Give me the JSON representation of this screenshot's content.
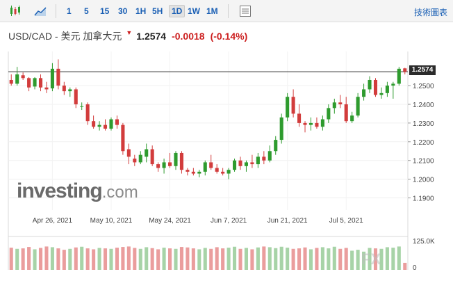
{
  "toolbar": {
    "timeframes": [
      "1",
      "5",
      "15",
      "30",
      "1H",
      "5H",
      "1D",
      "1W",
      "1M"
    ],
    "active_timeframe": "1D",
    "tech_chart_label": "技術圖表"
  },
  "header": {
    "symbol": "USD/CAD - 美元 加拿大元",
    "price": "1.2574",
    "change": "-0.0018",
    "change_pct": "(-0.14%)",
    "down_color": "#cc1f1f"
  },
  "logo": {
    "brand": "investing",
    "domain": ".com"
  },
  "watermark": "FX",
  "last_price_label": "1.2574",
  "chart_data": {
    "type": "candlestick",
    "up_color": "#2e9b2e",
    "down_color": "#d23c3c",
    "ylim": [
      1.185,
      1.266
    ],
    "y_ticks": [
      1.19,
      1.2,
      1.21,
      1.22,
      1.23,
      1.24,
      1.25
    ],
    "y_tick_labels": [
      "1.1900",
      "1.2000",
      "1.2100",
      "1.2200",
      "1.2300",
      "1.2400",
      "1.2500"
    ],
    "x_tick_labels": [
      "Apr 26, 2021",
      "May 10, 2021",
      "May 24, 2021",
      "Jun 7, 2021",
      "Jun 21, 2021",
      "Jul 5, 2021"
    ],
    "x_tick_index": [
      7,
      17,
      27,
      37,
      47,
      57
    ],
    "last_price": 1.2574,
    "volume_ticks": [
      "125.0K",
      "0"
    ],
    "volume_max": 125,
    "candles": [
      [
        1.253,
        1.256,
        1.25,
        1.251
      ],
      [
        1.251,
        1.26,
        1.25,
        1.256
      ],
      [
        1.2555,
        1.257,
        1.253,
        1.254
      ],
      [
        1.254,
        1.2545,
        1.247,
        1.249
      ],
      [
        1.2495,
        1.2545,
        1.248,
        1.254
      ],
      [
        1.254,
        1.256,
        1.247,
        1.249
      ],
      [
        1.249,
        1.252,
        1.246,
        1.248
      ],
      [
        1.2485,
        1.262,
        1.247,
        1.259
      ],
      [
        1.259,
        1.264,
        1.248,
        1.25
      ],
      [
        1.25,
        1.252,
        1.245,
        1.247
      ],
      [
        1.247,
        1.249,
        1.244,
        1.248
      ],
      [
        1.248,
        1.249,
        1.238,
        1.24
      ],
      [
        1.239,
        1.241,
        1.237,
        1.239
      ],
      [
        1.24,
        1.241,
        1.229,
        1.231
      ],
      [
        1.231,
        1.234,
        1.227,
        1.228
      ],
      [
        1.228,
        1.231,
        1.226,
        1.229
      ],
      [
        1.229,
        1.232,
        1.226,
        1.227
      ],
      [
        1.227,
        1.233,
        1.226,
        1.232
      ],
      [
        1.232,
        1.234,
        1.227,
        1.229
      ],
      [
        1.229,
        1.23,
        1.213,
        1.215
      ],
      [
        1.216,
        1.219,
        1.208,
        1.212
      ],
      [
        1.211,
        1.213,
        1.207,
        1.209
      ],
      [
        1.209,
        1.215,
        1.208,
        1.213
      ],
      [
        1.212,
        1.219,
        1.209,
        1.216
      ],
      [
        1.216,
        1.218,
        1.207,
        1.208
      ],
      [
        1.208,
        1.209,
        1.204,
        1.206
      ],
      [
        1.206,
        1.211,
        1.203,
        1.209
      ],
      [
        1.209,
        1.214,
        1.206,
        1.207
      ],
      [
        1.207,
        1.215,
        1.205,
        1.214
      ],
      [
        1.214,
        1.215,
        1.203,
        1.205
      ],
      [
        1.205,
        1.206,
        1.202,
        1.204
      ],
      [
        1.204,
        1.206,
        1.202,
        1.203
      ],
      [
        1.203,
        1.205,
        1.201,
        1.204
      ],
      [
        1.204,
        1.21,
        1.202,
        1.209
      ],
      [
        1.209,
        1.213,
        1.205,
        1.206
      ],
      [
        1.206,
        1.208,
        1.203,
        1.204
      ],
      [
        1.204,
        1.206,
        1.202,
        1.203
      ],
      [
        1.203,
        1.206,
        1.2,
        1.205
      ],
      [
        1.205,
        1.211,
        1.204,
        1.21
      ],
      [
        1.21,
        1.212,
        1.205,
        1.207
      ],
      [
        1.207,
        1.21,
        1.204,
        1.209
      ],
      [
        1.209,
        1.213,
        1.206,
        1.208
      ],
      [
        1.208,
        1.214,
        1.206,
        1.212
      ],
      [
        1.212,
        1.215,
        1.208,
        1.21
      ],
      [
        1.21,
        1.218,
        1.209,
        1.215
      ],
      [
        1.215,
        1.223,
        1.213,
        1.221
      ],
      [
        1.221,
        1.235,
        1.219,
        1.233
      ],
      [
        1.233,
        1.246,
        1.231,
        1.244
      ],
      [
        1.244,
        1.248,
        1.233,
        1.235
      ],
      [
        1.235,
        1.24,
        1.228,
        1.23
      ],
      [
        1.23,
        1.231,
        1.225,
        1.229
      ],
      [
        1.229,
        1.233,
        1.226,
        1.23
      ],
      [
        1.23,
        1.233,
        1.227,
        1.228
      ],
      [
        1.228,
        1.234,
        1.226,
        1.232
      ],
      [
        1.232,
        1.24,
        1.23,
        1.238
      ],
      [
        1.238,
        1.243,
        1.235,
        1.241
      ],
      [
        1.241,
        1.245,
        1.238,
        1.24
      ],
      [
        1.24,
        1.244,
        1.23,
        1.231
      ],
      [
        1.231,
        1.236,
        1.23,
        1.234
      ],
      [
        1.234,
        1.246,
        1.233,
        1.244
      ],
      [
        1.244,
        1.251,
        1.242,
        1.248
      ],
      [
        1.248,
        1.255,
        1.246,
        1.253
      ],
      [
        1.253,
        1.254,
        1.244,
        1.245
      ],
      [
        1.245,
        1.249,
        1.243,
        1.246
      ],
      [
        1.246,
        1.252,
        1.244,
        1.25
      ],
      [
        1.25,
        1.252,
        1.243,
        1.251
      ],
      [
        1.251,
        1.26,
        1.25,
        1.259
      ],
      [
        1.2592,
        1.2595,
        1.256,
        1.2574
      ]
    ],
    "volumes": [
      95,
      90,
      92,
      98,
      88,
      94,
      100,
      97,
      92,
      86,
      90,
      96,
      99,
      92,
      88,
      94,
      92,
      90,
      95,
      98,
      100,
      94,
      90,
      97,
      93,
      88,
      95,
      92,
      90,
      98,
      96,
      92,
      88,
      94,
      90,
      97,
      92,
      95,
      99,
      90,
      94,
      88,
      96,
      100,
      97,
      93,
      99,
      95,
      90,
      92,
      96,
      88,
      94,
      97,
      92,
      99,
      90,
      94,
      82,
      86,
      78,
      94,
      92,
      90,
      97,
      95,
      100,
      30
    ]
  }
}
